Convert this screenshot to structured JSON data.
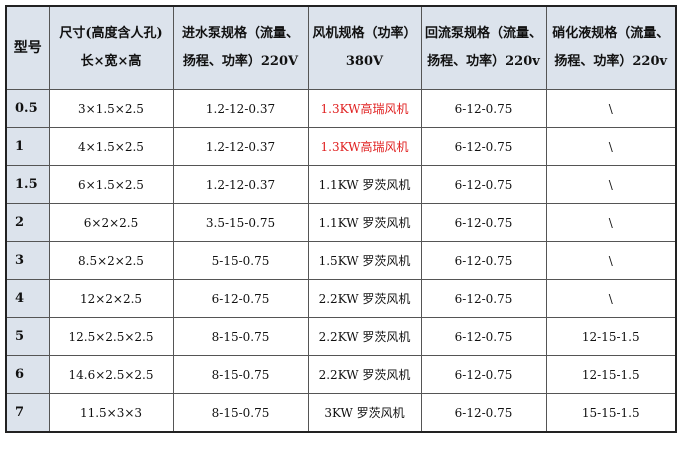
{
  "table": {
    "header": [
      [
        "型号"
      ],
      [
        "尺寸(高度含人孔)",
        "长×宽×高"
      ],
      [
        "进水泵规格（流量、",
        "扬程、功率）220V"
      ],
      [
        "风机规格（功率）",
        "380V"
      ],
      [
        "回流泵规格（流量、",
        "扬程、功率）220v"
      ],
      [
        "硝化液规格（流量、",
        "扬程、功率）220v"
      ]
    ],
    "rows": [
      [
        "0.5",
        "3×1.5×2.5",
        "1.2-12-0.37",
        "1.3KW高瑞风机",
        "6-12-0.75",
        "\\"
      ],
      [
        "1",
        "4×1.5×2.5",
        "1.2-12-0.37",
        "1.3KW高瑞风机",
        "6-12-0.75",
        "\\"
      ],
      [
        "1.5",
        "6×1.5×2.5",
        "1.2-12-0.37",
        "1.1KW 罗茨风机",
        "6-12-0.75",
        "\\"
      ],
      [
        "2",
        "6×2×2.5",
        "3.5-15-0.75",
        "1.1KW 罗茨风机",
        "6-12-0.75",
        "\\"
      ],
      [
        "3",
        "8.5×2×2.5",
        "5-15-0.75",
        "1.5KW 罗茨风机",
        "6-12-0.75",
        "\\"
      ],
      [
        "4",
        "12×2×2.5",
        "6-12-0.75",
        "2.2KW 罗茨风机",
        "6-12-0.75",
        "\\"
      ],
      [
        "5",
        "12.5×2.5×2.5",
        "8-15-0.75",
        "2.2KW 罗茨风机",
        "6-12-0.75",
        "12-15-1.5"
      ],
      [
        "6",
        "14.6×2.5×2.5",
        "8-15-0.75",
        "2.2KW 罗茨风机",
        "6-12-0.75",
        "12-15-1.5"
      ],
      [
        "7",
        "11.5×3×3",
        "8-15-0.75",
        "3KW 罗茨风机",
        "6-12-0.75",
        "15-15-1.5"
      ]
    ]
  }
}
